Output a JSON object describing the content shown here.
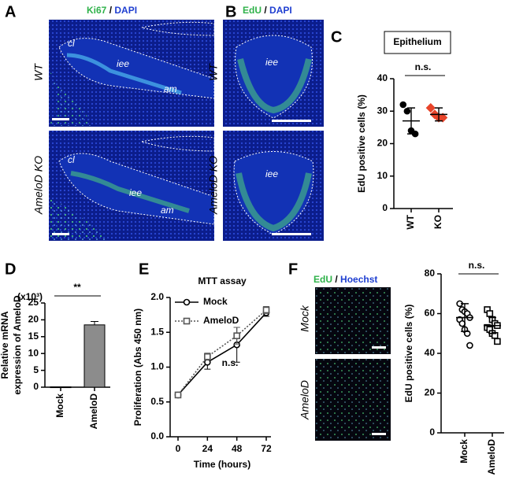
{
  "panels": {
    "A": {
      "letter": "A",
      "stain": [
        "Ki67",
        "/",
        "DAPI"
      ],
      "rows": [
        "WT",
        "AmeloD KO"
      ],
      "labels": [
        "cl",
        "iee",
        "am",
        "cl",
        "iee",
        "am"
      ]
    },
    "B": {
      "letter": "B",
      "stain": [
        "EdU",
        "/",
        "DAPI"
      ],
      "rows": [
        "WT",
        "AmeloD KO"
      ],
      "labels": [
        "iee",
        "iee"
      ]
    },
    "C": {
      "letter": "C"
    },
    "D": {
      "letter": "D"
    },
    "E": {
      "letter": "E"
    },
    "F": {
      "letter": "F",
      "stain": [
        "EdU",
        "/",
        "Hoechst"
      ],
      "rows": [
        "Mock",
        "AmeloD"
      ]
    }
  },
  "chart_data": [
    {
      "type": "dot",
      "title": "Epithelium",
      "ylabel": "EdU positive cells (%)",
      "annotation": "n.s.",
      "categories": [
        "WT",
        "KO"
      ],
      "colors": [
        "#000000",
        "#e8442a"
      ],
      "markers": [
        "circle",
        "diamond"
      ],
      "points": [
        [
          32,
          30,
          24,
          23
        ],
        [
          31,
          29,
          28,
          28
        ]
      ],
      "means": [
        27,
        29
      ],
      "errors": [
        4,
        2
      ],
      "ylim": [
        0,
        40
      ],
      "yticks": [
        0,
        10,
        20,
        30,
        40
      ]
    },
    {
      "type": "bar",
      "unit_label": "(x10³)",
      "ylabel": [
        "Relative mRNA",
        "expression of AmeloD"
      ],
      "annotation": "**",
      "categories": [
        "Mock",
        "AmeloD"
      ],
      "values": [
        0.1,
        18.5
      ],
      "errors": [
        0,
        1
      ],
      "color": "#8c8c8c",
      "ylim": [
        0,
        25
      ],
      "yticks": [
        0,
        5,
        10,
        15,
        20,
        25
      ]
    },
    {
      "type": "line",
      "title": "MTT assay",
      "xlabel": "Time (hours)",
      "ylabel": "Proliferation (Abs 450 nm)",
      "annotation": "n.s.",
      "x": [
        0,
        24,
        48,
        72
      ],
      "series": [
        {
          "name": "Mock",
          "color": "#000000",
          "marker": "circle",
          "dash": "solid",
          "values": [
            0.6,
            1.07,
            1.32,
            1.78
          ],
          "errors": [
            0.03,
            0.1,
            0.25,
            0.05
          ]
        },
        {
          "name": "AmeloD",
          "color": "#555555",
          "marker": "square",
          "dash": "dotted",
          "values": [
            0.6,
            1.15,
            1.45,
            1.82
          ],
          "errors": [
            0.03,
            0.05,
            0.12,
            0.05
          ]
        }
      ],
      "xlim": [
        0,
        72
      ],
      "xticks": [
        0,
        24,
        48,
        72
      ],
      "ylim": [
        0,
        2
      ],
      "yticks": [
        {
          "value": 0,
          "label": "0.0"
        },
        {
          "value": 0.5,
          "label": "0.5"
        },
        {
          "value": 1,
          "label": "1.0"
        },
        {
          "value": 1.5,
          "label": "1.5"
        },
        {
          "value": 2,
          "label": "2.0"
        }
      ]
    },
    {
      "type": "dot",
      "ylabel": "EdU positive cells (%)",
      "annotation": "n.s.",
      "categories": [
        "Mock",
        "AmeloD"
      ],
      "colors": [
        "#000000",
        "#000000"
      ],
      "markers": [
        "circle",
        "square"
      ],
      "points": [
        [
          65,
          62,
          61,
          60,
          58,
          57,
          55,
          52,
          50,
          44
        ],
        [
          62,
          60,
          57,
          55,
          54,
          53,
          52,
          50,
          49,
          46
        ]
      ],
      "means": [
        58,
        54
      ],
      "errors": [
        7,
        4
      ],
      "ylim": [
        0,
        80
      ],
      "yticks": [
        0,
        20,
        40,
        60,
        80
      ]
    }
  ]
}
